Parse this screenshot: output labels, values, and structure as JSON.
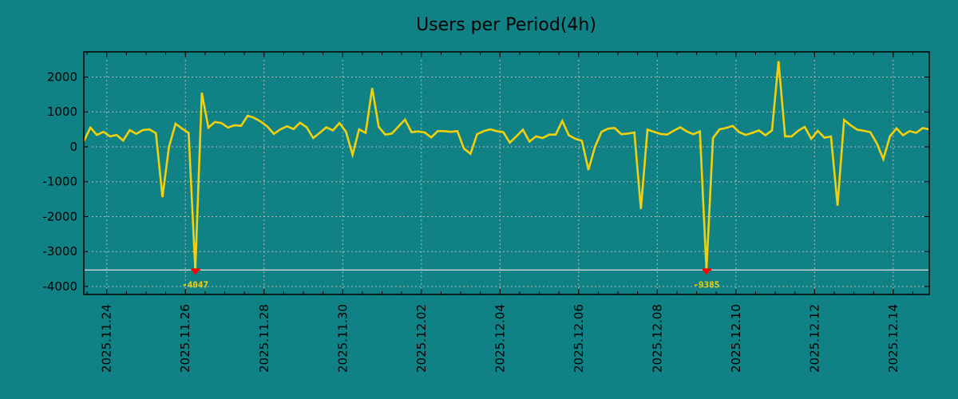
{
  "chart_data": {
    "type": "line",
    "title": "Users per Period(4h)",
    "xlabel": "",
    "ylabel": "",
    "x_start": "2025-11-23T10:00",
    "step_hours": 4,
    "x_range_days": [
      "2025-11-23T10:00",
      "2025-12-14T22:00"
    ],
    "ylim": [
      -4230,
      2720
    ],
    "y_ticks": [
      2000,
      1000,
      0,
      -1000,
      -2000,
      -3000,
      -4000
    ],
    "y_tick_labels": [
      "2000",
      "1000",
      "0",
      "-1000",
      "-2000",
      "-3000",
      "-4000"
    ],
    "x_tick_labels": [
      "2025.11.24",
      "2025.11.26",
      "2025.11.28",
      "2025.11.30",
      "2025.12.02",
      "2025.12.04",
      "2025.12.06",
      "2025.12.08",
      "2025.12.10",
      "2025.12.12",
      "2025.12.14"
    ],
    "grid": true,
    "clip_line_value": -3530,
    "series": [
      {
        "name": "Users",
        "color": "#f2d10c",
        "values": [
          160,
          550,
          340,
          430,
          300,
          340,
          180,
          480,
          370,
          480,
          500,
          390,
          -1440,
          0,
          660,
          520,
          400,
          -4047,
          1550,
          550,
          710,
          680,
          550,
          620,
          600,
          890,
          830,
          720,
          580,
          370,
          500,
          590,
          510,
          690,
          560,
          250,
          400,
          560,
          470,
          680,
          430,
          -230,
          500,
          400,
          1680,
          570,
          350,
          380,
          580,
          780,
          420,
          440,
          410,
          270,
          450,
          450,
          430,
          450,
          -50,
          -200,
          360,
          450,
          500,
          450,
          420,
          120,
          300,
          490,
          150,
          300,
          250,
          350,
          350,
          740,
          330,
          230,
          170,
          -660,
          0,
          430,
          520,
          540,
          360,
          380,
          410,
          -1780,
          490,
          430,
          370,
          350,
          460,
          560,
          440,
          360,
          440,
          -9385,
          250,
          500,
          540,
          600,
          420,
          340,
          400,
          470,
          330,
          470,
          2450,
          300,
          300,
          460,
          570,
          230,
          460,
          260,
          300,
          -1680,
          770,
          620,
          490,
          460,
          420,
          100,
          -350,
          300,
          530,
          330,
          450,
          400,
          540,
          500
        ]
      }
    ],
    "annotations": [
      {
        "index": 17,
        "label": "-4047",
        "marker_color": "#ff0000"
      },
      {
        "index": 95,
        "label": "-9385",
        "marker_color": "#ff0000"
      }
    ]
  }
}
